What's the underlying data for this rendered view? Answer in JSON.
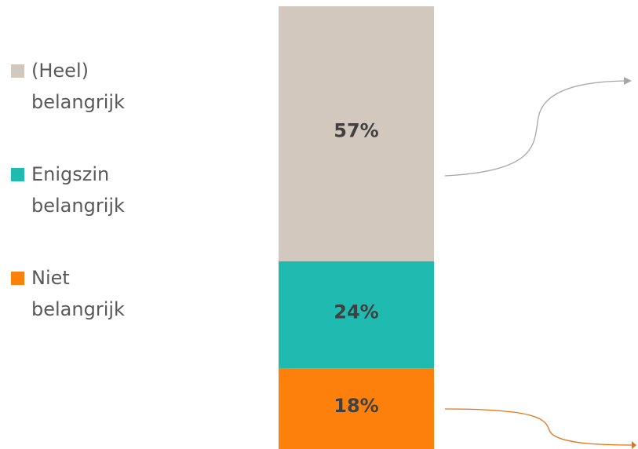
{
  "chart_data": {
    "type": "bar",
    "stacked": true,
    "categories": [
      null
    ],
    "series": [
      {
        "name": "(Heel) belangrijk",
        "color": "#d3c8bd",
        "values": [
          57
        ],
        "value_labels": [
          "57%"
        ]
      },
      {
        "name": "Enigszin belangrijk",
        "color": "#20bbb0",
        "values": [
          24
        ],
        "value_labels": [
          "24%"
        ]
      },
      {
        "name": "Niet belangrijk",
        "color": "#fd7f0c",
        "values": [
          18
        ],
        "value_labels": [
          "18%"
        ]
      }
    ],
    "legend": "left"
  }
}
